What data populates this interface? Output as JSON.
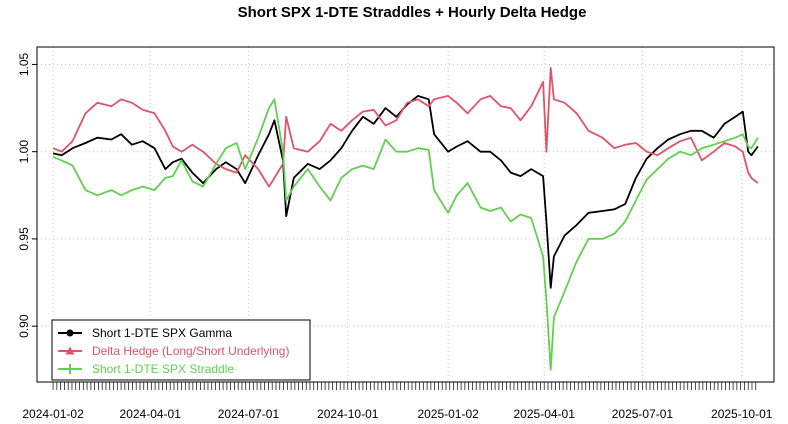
{
  "chart_data": {
    "type": "line",
    "title": "Short SPX 1-DTE Straddles + Hourly Delta Hedge",
    "xlabel": "",
    "ylabel": "",
    "ylim": [
      0.868,
      1.06
    ],
    "xlim": [
      "2024-01-01",
      "2025-10-17"
    ],
    "grid": true,
    "legend_position": "bottom-left",
    "y_ticks": [
      0.9,
      0.95,
      1.0,
      1.05
    ],
    "y_tick_labels": [
      "0.90",
      "0.95",
      "1.00",
      "1.05"
    ],
    "x_ticks": [
      "2024-01-02",
      "2024-04-01",
      "2024-07-01",
      "2024-10-01",
      "2025-01-02",
      "2025-04-01",
      "2025-07-01",
      "2025-10-01"
    ],
    "series": [
      {
        "name": "Short 1-DTE SPX Gamma",
        "color": "#000000",
        "x": [
          "2024-01-02",
          "2024-01-10",
          "2024-01-20",
          "2024-02-01",
          "2024-02-12",
          "2024-02-25",
          "2024-03-05",
          "2024-03-15",
          "2024-03-25",
          "2024-04-05",
          "2024-04-15",
          "2024-04-22",
          "2024-04-30",
          "2024-05-10",
          "2024-05-20",
          "2024-06-01",
          "2024-06-10",
          "2024-06-20",
          "2024-06-28",
          "2024-07-10",
          "2024-07-20",
          "2024-07-25",
          "2024-08-02",
          "2024-08-05",
          "2024-08-12",
          "2024-08-25",
          "2024-09-05",
          "2024-09-15",
          "2024-09-25",
          "2024-10-05",
          "2024-10-15",
          "2024-10-25",
          "2024-11-05",
          "2024-11-15",
          "2024-11-25",
          "2024-12-05",
          "2024-12-15",
          "2024-12-20",
          "2025-01-02",
          "2025-01-10",
          "2025-01-20",
          "2025-02-01",
          "2025-02-10",
          "2025-02-20",
          "2025-03-01",
          "2025-03-10",
          "2025-03-20",
          "2025-03-31",
          "2025-04-03",
          "2025-04-07",
          "2025-04-10",
          "2025-04-20",
          "2025-05-01",
          "2025-05-12",
          "2025-05-25",
          "2025-06-05",
          "2025-06-15",
          "2025-06-25",
          "2025-07-05",
          "2025-07-15",
          "2025-07-25",
          "2025-08-05",
          "2025-08-15",
          "2025-08-25",
          "2025-09-05",
          "2025-09-15",
          "2025-09-25",
          "2025-10-02",
          "2025-10-07",
          "2025-10-10",
          "2025-10-16"
        ],
        "values": [
          0.999,
          0.998,
          1.002,
          1.005,
          1.008,
          1.007,
          1.01,
          1.004,
          1.006,
          1.002,
          0.99,
          0.994,
          0.996,
          0.988,
          0.982,
          0.99,
          0.994,
          0.99,
          0.982,
          0.998,
          1.01,
          1.018,
          0.995,
          0.963,
          0.985,
          0.993,
          0.99,
          0.995,
          1.002,
          1.012,
          1.02,
          1.016,
          1.025,
          1.02,
          1.027,
          1.032,
          1.03,
          1.01,
          1.0,
          1.003,
          1.006,
          1.0,
          1.0,
          0.995,
          0.988,
          0.986,
          0.99,
          0.986,
          0.96,
          0.922,
          0.94,
          0.952,
          0.958,
          0.965,
          0.966,
          0.967,
          0.97,
          0.985,
          0.996,
          1.002,
          1.007,
          1.01,
          1.012,
          1.012,
          1.008,
          1.016,
          1.02,
          1.023,
          1.0,
          0.998,
          1.003
        ]
      },
      {
        "name": "Delta Hedge (Long/Short Underlying)",
        "color": "#DF536B",
        "x": [
          "2024-01-02",
          "2024-01-10",
          "2024-01-20",
          "2024-02-01",
          "2024-02-12",
          "2024-02-25",
          "2024-03-05",
          "2024-03-15",
          "2024-03-25",
          "2024-04-05",
          "2024-04-15",
          "2024-04-22",
          "2024-04-30",
          "2024-05-10",
          "2024-05-20",
          "2024-06-01",
          "2024-06-10",
          "2024-06-20",
          "2024-06-28",
          "2024-07-10",
          "2024-07-20",
          "2024-07-25",
          "2024-08-02",
          "2024-08-05",
          "2024-08-12",
          "2024-08-25",
          "2024-09-05",
          "2024-09-15",
          "2024-09-25",
          "2024-10-05",
          "2024-10-15",
          "2024-10-25",
          "2024-11-05",
          "2024-11-15",
          "2024-11-25",
          "2024-12-05",
          "2024-12-15",
          "2024-12-20",
          "2025-01-02",
          "2025-01-10",
          "2025-01-20",
          "2025-02-01",
          "2025-02-10",
          "2025-02-20",
          "2025-03-01",
          "2025-03-10",
          "2025-03-20",
          "2025-03-31",
          "2025-04-03",
          "2025-04-07",
          "2025-04-10",
          "2025-04-20",
          "2025-05-01",
          "2025-05-12",
          "2025-05-25",
          "2025-06-05",
          "2025-06-15",
          "2025-06-25",
          "2025-07-05",
          "2025-07-15",
          "2025-07-25",
          "2025-08-05",
          "2025-08-15",
          "2025-08-25",
          "2025-09-05",
          "2025-09-15",
          "2025-09-25",
          "2025-10-02",
          "2025-10-07",
          "2025-10-10",
          "2025-10-16"
        ],
        "values": [
          1.002,
          1.0,
          1.006,
          1.022,
          1.028,
          1.026,
          1.03,
          1.028,
          1.024,
          1.022,
          1.012,
          1.003,
          1.0,
          1.004,
          1.0,
          0.993,
          0.99,
          0.988,
          0.998,
          0.99,
          0.98,
          0.985,
          0.993,
          1.02,
          1.002,
          1.0,
          1.006,
          1.016,
          1.012,
          1.018,
          1.023,
          1.024,
          1.015,
          1.018,
          1.028,
          1.03,
          1.026,
          1.03,
          1.032,
          1.028,
          1.022,
          1.03,
          1.032,
          1.026,
          1.025,
          1.018,
          1.026,
          1.04,
          1.0,
          1.048,
          1.03,
          1.028,
          1.022,
          1.012,
          1.008,
          1.002,
          1.004,
          1.005,
          1.0,
          0.998,
          1.002,
          1.006,
          1.008,
          0.995,
          1.0,
          1.005,
          1.003,
          1.0,
          0.988,
          0.985,
          0.982
        ]
      },
      {
        "name": "Short 1-DTE SPX Straddle",
        "color": "#61D04F",
        "x": [
          "2024-01-02",
          "2024-01-10",
          "2024-01-20",
          "2024-02-01",
          "2024-02-12",
          "2024-02-25",
          "2024-03-05",
          "2024-03-15",
          "2024-03-25",
          "2024-04-05",
          "2024-04-15",
          "2024-04-22",
          "2024-04-30",
          "2024-05-10",
          "2024-05-20",
          "2024-06-01",
          "2024-06-10",
          "2024-06-20",
          "2024-06-28",
          "2024-07-10",
          "2024-07-20",
          "2024-07-25",
          "2024-08-02",
          "2024-08-05",
          "2024-08-12",
          "2024-08-25",
          "2024-09-05",
          "2024-09-15",
          "2024-09-25",
          "2024-10-05",
          "2024-10-15",
          "2024-10-25",
          "2024-11-05",
          "2024-11-15",
          "2024-11-25",
          "2024-12-05",
          "2024-12-15",
          "2024-12-20",
          "2025-01-02",
          "2025-01-10",
          "2025-01-20",
          "2025-02-01",
          "2025-02-10",
          "2025-02-20",
          "2025-03-01",
          "2025-03-10",
          "2025-03-20",
          "2025-03-31",
          "2025-04-03",
          "2025-04-07",
          "2025-04-10",
          "2025-04-20",
          "2025-05-01",
          "2025-05-12",
          "2025-05-25",
          "2025-06-05",
          "2025-06-15",
          "2025-06-25",
          "2025-07-05",
          "2025-07-15",
          "2025-07-25",
          "2025-08-05",
          "2025-08-15",
          "2025-08-25",
          "2025-09-05",
          "2025-09-15",
          "2025-09-25",
          "2025-10-02",
          "2025-10-07",
          "2025-10-10",
          "2025-10-16"
        ],
        "values": [
          0.997,
          0.995,
          0.992,
          0.978,
          0.975,
          0.978,
          0.975,
          0.978,
          0.98,
          0.978,
          0.985,
          0.986,
          0.995,
          0.983,
          0.98,
          0.993,
          1.002,
          1.005,
          0.99,
          1.008,
          1.025,
          1.03,
          1.0,
          0.972,
          0.98,
          0.99,
          0.98,
          0.972,
          0.985,
          0.99,
          0.992,
          0.99,
          1.007,
          1.0,
          1.0,
          1.002,
          1.001,
          0.978,
          0.965,
          0.975,
          0.982,
          0.968,
          0.966,
          0.968,
          0.96,
          0.964,
          0.962,
          0.94,
          0.915,
          0.875,
          0.905,
          0.92,
          0.937,
          0.95,
          0.95,
          0.953,
          0.96,
          0.972,
          0.984,
          0.99,
          0.996,
          1.0,
          0.998,
          1.002,
          1.004,
          1.006,
          1.008,
          1.01,
          1.003,
          1.002,
          1.008
        ]
      }
    ]
  }
}
